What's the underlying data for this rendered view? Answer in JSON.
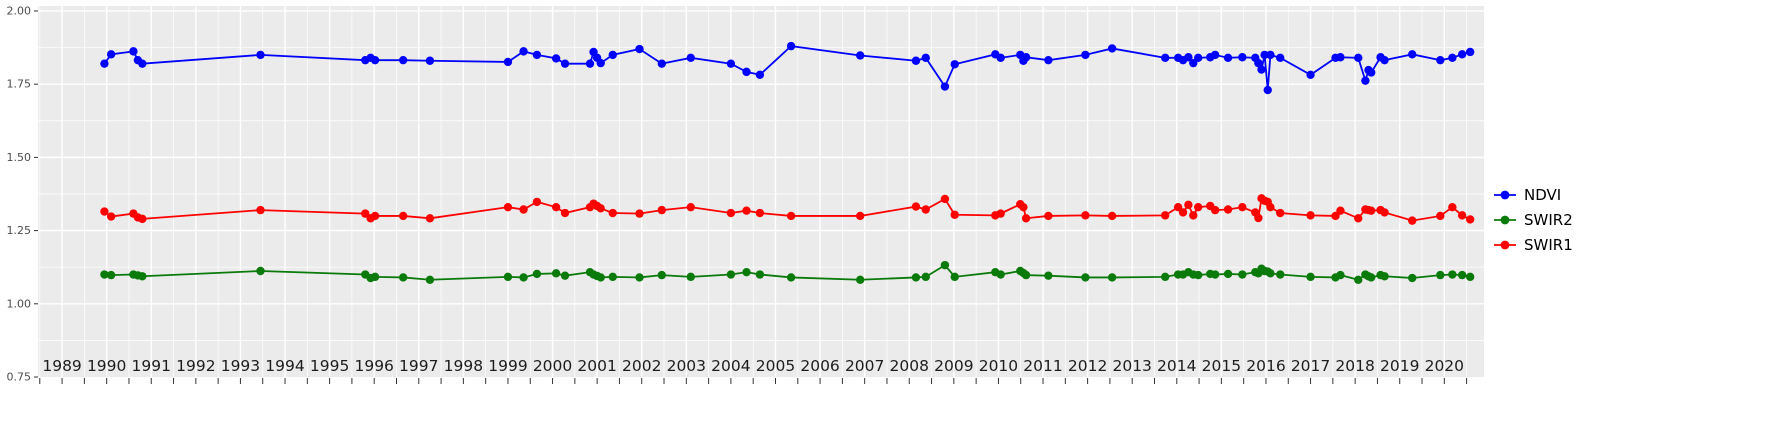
{
  "figure": {
    "background": "#FFFFFF",
    "panel_background": "#EBEBEB",
    "gridline_color": "#FFFFFF",
    "tick_color": "#333333",
    "x_axis_text_color": "#1d1d1d",
    "y_axis_text_color": "#4d4d4d"
  },
  "legend": {
    "position": "right",
    "items": [
      {
        "label": "NDVI",
        "color": "#0000FF"
      },
      {
        "label": "SWIR2",
        "color": "#0a7a0a"
      },
      {
        "label": "SWIR1",
        "color": "#FF0000"
      }
    ]
  },
  "chart_data": {
    "type": "line",
    "title": "",
    "xlabel": "",
    "ylabel": "",
    "grid": true,
    "legend_position": "right",
    "xlim": [
      1988.96,
      2021.39
    ],
    "ylim": [
      0.75,
      2.017
    ],
    "x_tick_labels": [
      "1989",
      "1990",
      "1991",
      "1992",
      "1993",
      "1994",
      "1995",
      "1996",
      "1997",
      "1998",
      "1999",
      "2000",
      "2001",
      "2002",
      "2003",
      "2004",
      "2005",
      "2006",
      "2007",
      "2008",
      "2009",
      "2010",
      "2011",
      "2012",
      "2013",
      "2014",
      "2015",
      "2016",
      "2017",
      "2018",
      "2019",
      "2020"
    ],
    "y_ticks": [
      2.0,
      1.75,
      1.5,
      1.25,
      1.0,
      0.75
    ],
    "y_tick_labels": [
      "2.00",
      "1.75",
      "1.50",
      "1.25",
      "1.00",
      "0.75"
    ],
    "x": [
      1990.45,
      1990.6,
      1991.1,
      1991.2,
      1991.3,
      1993.95,
      1996.3,
      1996.42,
      1996.52,
      1997.15,
      1997.75,
      1999.5,
      1999.85,
      2000.15,
      2000.58,
      2000.78,
      2001.34,
      2001.42,
      2001.5,
      2001.58,
      2001.85,
      2002.45,
      2002.95,
      2003.6,
      2004.5,
      2004.85,
      2005.15,
      2005.85,
      2007.4,
      2008.65,
      2008.87,
      2009.3,
      2009.52,
      2010.43,
      2010.55,
      2010.99,
      2011.06,
      2011.12,
      2011.62,
      2012.45,
      2013.05,
      2014.24,
      2014.53,
      2014.64,
      2014.76,
      2014.87,
      2014.98,
      2015.25,
      2015.36,
      2015.65,
      2015.97,
      2016.26,
      2016.33,
      2016.4,
      2016.47,
      2016.54,
      2016.6,
      2016.82,
      2017.5,
      2018.06,
      2018.17,
      2018.57,
      2018.73,
      2018.8,
      2018.86,
      2019.07,
      2019.16,
      2019.78,
      2020.41,
      2020.68,
      2020.9,
      2021.08
    ],
    "series": [
      {
        "name": "NDVI",
        "color": "#0000FF",
        "values": [
          1.82,
          1.852,
          1.862,
          1.832,
          1.82,
          1.85,
          1.832,
          1.84,
          1.832,
          1.832,
          1.83,
          1.826,
          1.862,
          1.85,
          1.838,
          1.82,
          1.82,
          1.86,
          1.84,
          1.822,
          1.85,
          1.87,
          1.82,
          1.84,
          1.82,
          1.792,
          1.782,
          1.88,
          1.848,
          1.83,
          1.84,
          1.742,
          1.818,
          1.852,
          1.84,
          1.85,
          1.83,
          1.842,
          1.832,
          1.85,
          1.872,
          1.84,
          1.84,
          1.832,
          1.842,
          1.822,
          1.84,
          1.842,
          1.85,
          1.84,
          1.842,
          1.84,
          1.822,
          1.8,
          1.85,
          1.73,
          1.85,
          1.84,
          1.782,
          1.84,
          1.842,
          1.84,
          1.762,
          1.798,
          1.79,
          1.842,
          1.832,
          1.852,
          1.832,
          1.84,
          1.852,
          1.86
        ]
      },
      {
        "name": "SWIR2",
        "color": "#0a7a0a",
        "values": [
          1.1,
          1.098,
          1.1,
          1.097,
          1.094,
          1.112,
          1.1,
          1.088,
          1.092,
          1.09,
          1.082,
          1.092,
          1.09,
          1.102,
          1.104,
          1.096,
          1.108,
          1.1,
          1.095,
          1.09,
          1.092,
          1.09,
          1.098,
          1.092,
          1.1,
          1.108,
          1.1,
          1.09,
          1.082,
          1.09,
          1.092,
          1.132,
          1.092,
          1.108,
          1.1,
          1.112,
          1.105,
          1.098,
          1.096,
          1.09,
          1.09,
          1.092,
          1.1,
          1.1,
          1.108,
          1.1,
          1.098,
          1.102,
          1.1,
          1.102,
          1.1,
          1.108,
          1.104,
          1.12,
          1.112,
          1.11,
          1.104,
          1.1,
          1.092,
          1.09,
          1.098,
          1.082,
          1.1,
          1.094,
          1.09,
          1.098,
          1.094,
          1.088,
          1.098,
          1.1,
          1.098,
          1.092
        ]
      },
      {
        "name": "SWIR1",
        "color": "#FF0000",
        "values": [
          1.315,
          1.298,
          1.308,
          1.295,
          1.29,
          1.32,
          1.308,
          1.292,
          1.3,
          1.3,
          1.292,
          1.33,
          1.322,
          1.348,
          1.33,
          1.31,
          1.33,
          1.342,
          1.334,
          1.326,
          1.31,
          1.308,
          1.32,
          1.33,
          1.31,
          1.318,
          1.31,
          1.3,
          1.3,
          1.332,
          1.322,
          1.358,
          1.304,
          1.302,
          1.308,
          1.34,
          1.33,
          1.292,
          1.3,
          1.302,
          1.3,
          1.302,
          1.33,
          1.312,
          1.338,
          1.302,
          1.33,
          1.334,
          1.32,
          1.322,
          1.33,
          1.312,
          1.293,
          1.36,
          1.352,
          1.348,
          1.33,
          1.31,
          1.302,
          1.3,
          1.318,
          1.292,
          1.322,
          1.32,
          1.318,
          1.32,
          1.312,
          1.284,
          1.3,
          1.33,
          1.302,
          1.288
        ]
      }
    ]
  }
}
